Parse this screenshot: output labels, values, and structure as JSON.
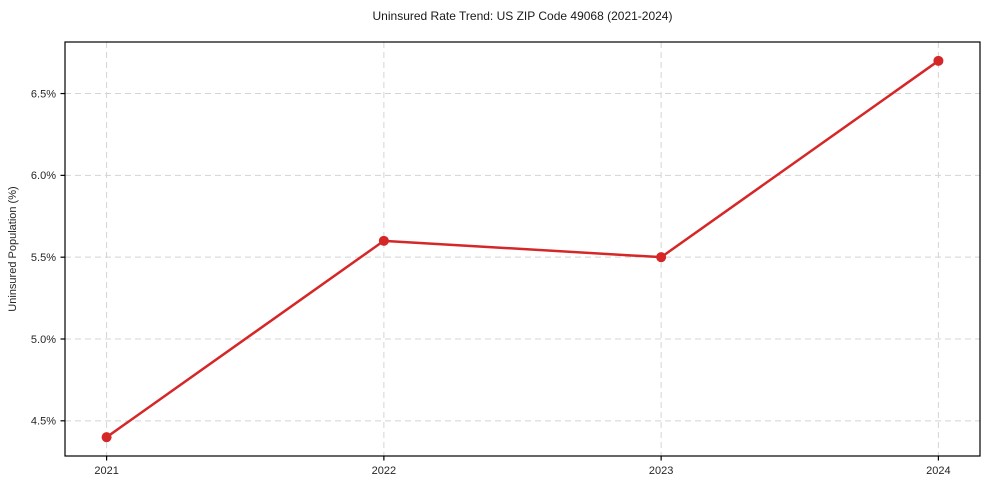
{
  "figure": {
    "title": "Uninsured Rate Trend: US ZIP Code 49068 (2021-2024)"
  },
  "chart_data": {
    "type": "line",
    "title": "Uninsured Rate Trend: US ZIP Code 49068 (2021-2024)",
    "xlabel": "",
    "ylabel": "Uninsured Population (%)",
    "x": [
      2021,
      2022,
      2023,
      2024
    ],
    "x_tick_labels": [
      "2021",
      "2022",
      "2023",
      "2024"
    ],
    "values": [
      4.4,
      5.6,
      5.5,
      6.7
    ],
    "y_ticks": [
      4.5,
      5.0,
      5.5,
      6.0,
      6.5
    ],
    "y_tick_labels": [
      "4.5%",
      "5.0%",
      "5.5%",
      "6.0%",
      "6.5%"
    ],
    "xlim": [
      2020.85,
      2024.15
    ],
    "ylim": [
      4.285,
      6.815
    ],
    "grid": true,
    "legend": "none",
    "line_color": "#d62728",
    "marker": "circle",
    "grid_color": "#d4d4d4",
    "spine_color": "#000000",
    "tick_label_color": "#262626"
  }
}
